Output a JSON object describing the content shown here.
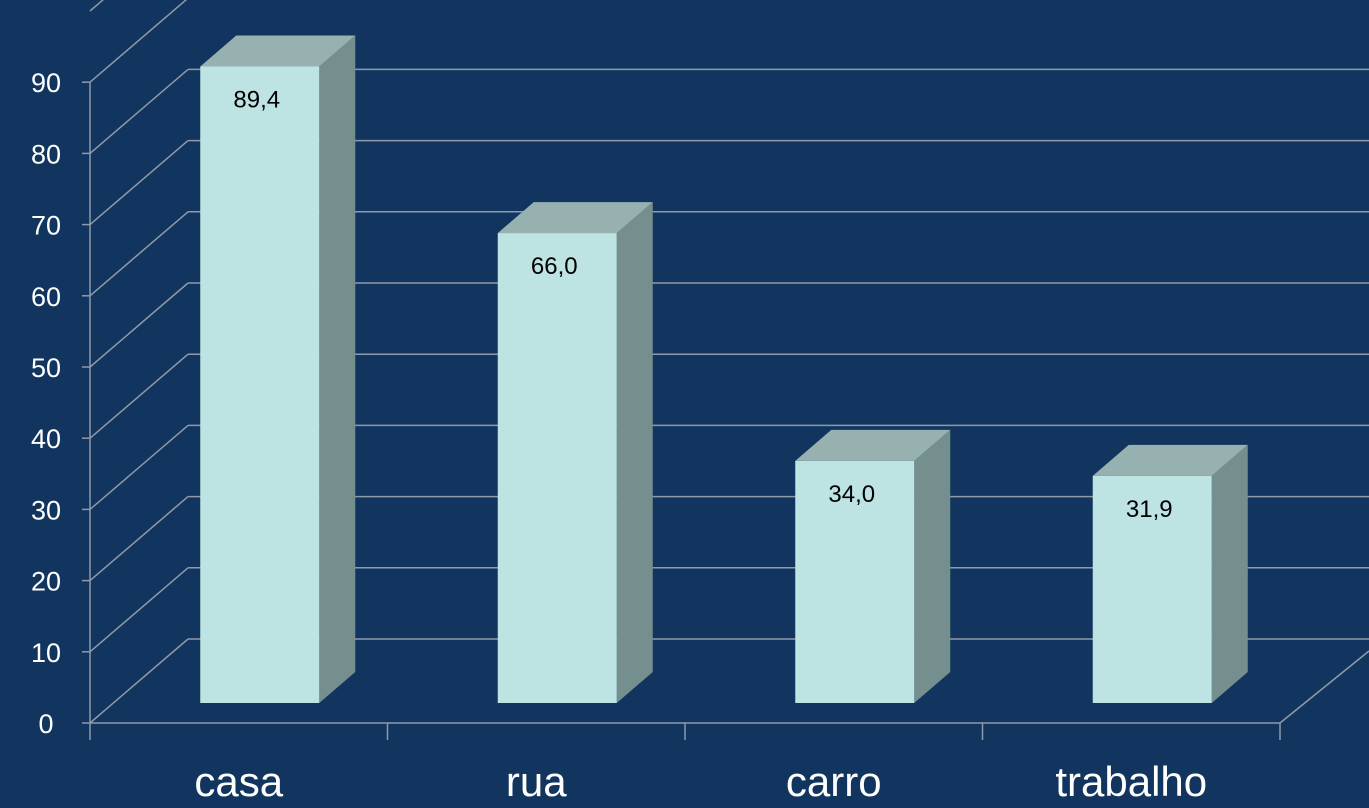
{
  "chart_data": {
    "type": "bar",
    "style": "3d-column",
    "categories": [
      "casa",
      "rua",
      "carro",
      "trabalho"
    ],
    "values": [
      89.4,
      66.0,
      34.0,
      31.9
    ],
    "data_labels": [
      "89,4",
      "66,0",
      "34,0",
      "31,9"
    ],
    "yticks": [
      "0",
      "10",
      "20",
      "30",
      "40",
      "50",
      "60",
      "70",
      "80",
      "90"
    ],
    "ylim": [
      0,
      100
    ],
    "grid": true,
    "legend": "none"
  },
  "colors": {
    "background": "#12355f",
    "gridline": "#8f9aa8",
    "bar_front": "#bde3e3",
    "bar_side": "#758f8f",
    "bar_top": "#97b0b0",
    "tick_text": "#ffffff",
    "label_text": "#000000"
  }
}
